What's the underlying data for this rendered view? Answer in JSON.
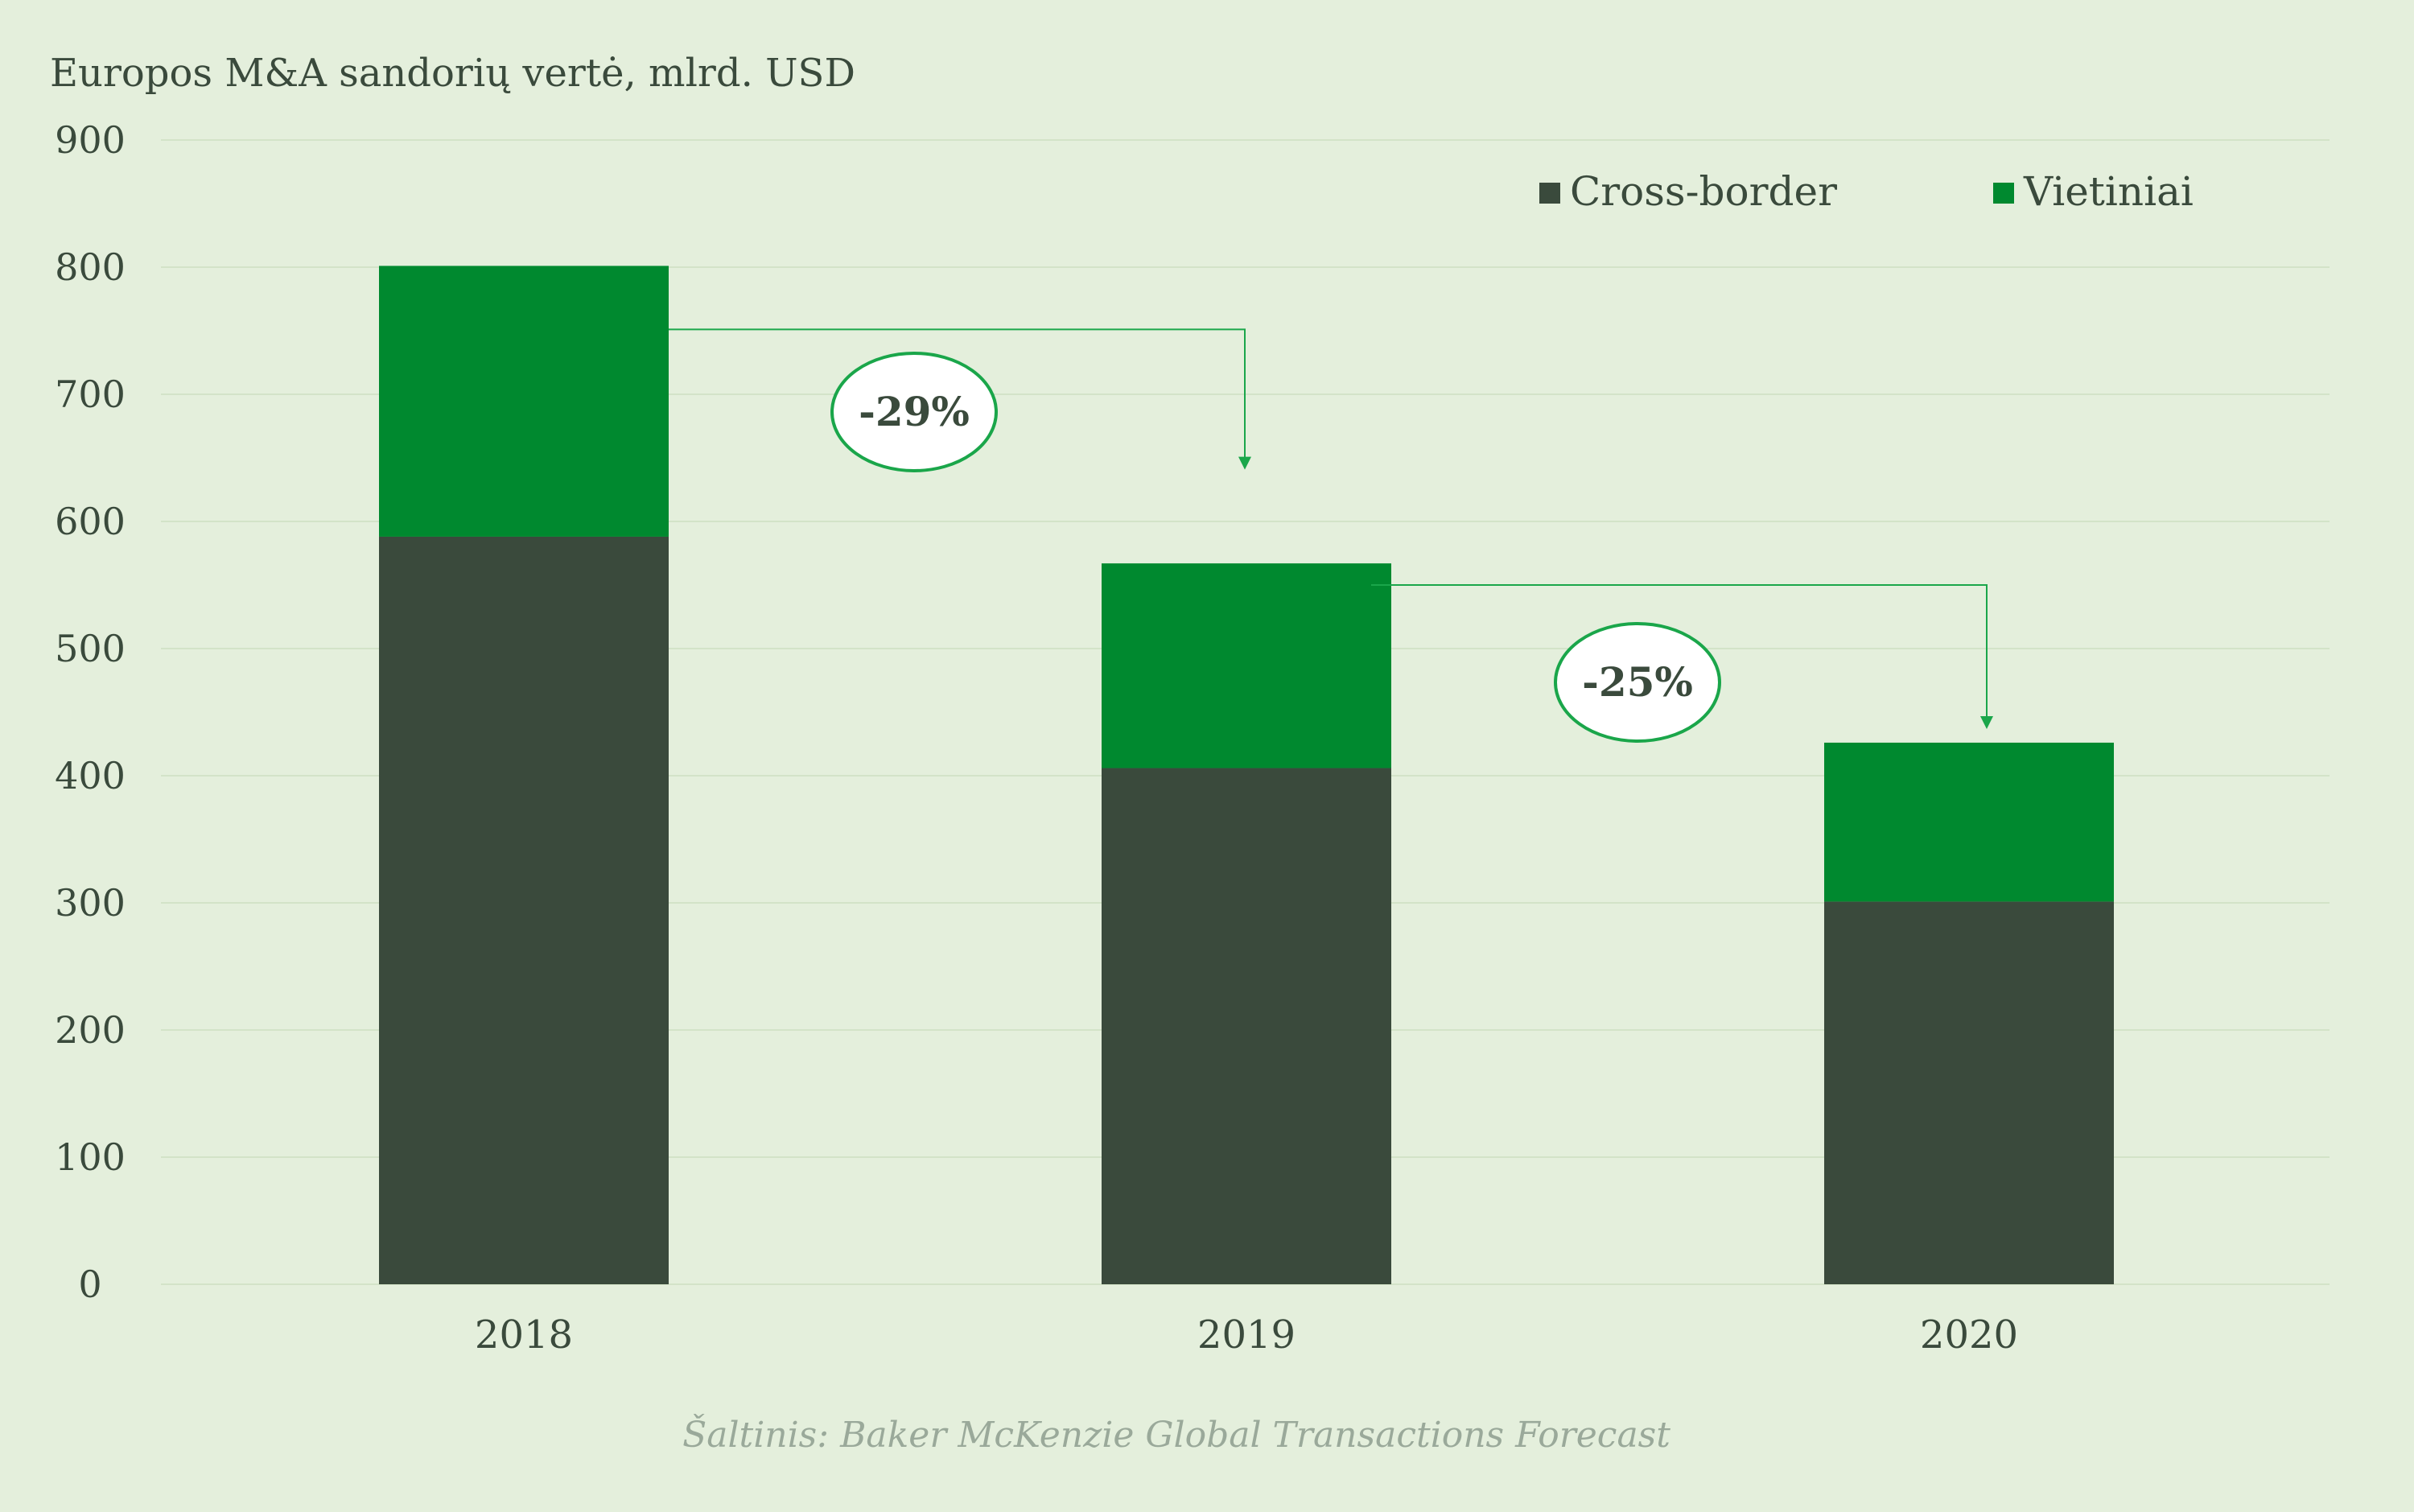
{
  "chart_data": {
    "type": "bar",
    "stacked": true,
    "title": "Europos M&A sandorių vertė, mlrd. USD",
    "xlabel": "",
    "ylabel": "",
    "categories": [
      "2018",
      "2019",
      "2020"
    ],
    "series": [
      {
        "name": "Cross-border",
        "color": "#3a4a3c",
        "values": [
          588,
          406,
          301
        ]
      },
      {
        "name": "Vietiniai",
        "color": "#00892f",
        "values": [
          213,
          161,
          125
        ]
      }
    ],
    "totals": [
      801,
      567,
      426
    ],
    "ylim": [
      0,
      900
    ],
    "yticks": [
      "0",
      "100",
      "200",
      "300",
      "400",
      "500",
      "600",
      "700",
      "800",
      "900"
    ],
    "grid": true,
    "legend_position": "top-right",
    "annotations": [
      {
        "label": "-29%",
        "from": "2018",
        "to": "2019"
      },
      {
        "label": "-25%",
        "from": "2019",
        "to": "2020"
      }
    ],
    "source": "Šaltinis: Baker McKenzie Global Transactions Forecast"
  },
  "colors": {
    "background": "#e4efdc",
    "grid": "#d3e3c8",
    "text": "#3a4a3c",
    "accent": "#00892f",
    "connector": "#1aa64a",
    "badge_fill": "#ffffff",
    "source_text": "#9aa99a"
  }
}
